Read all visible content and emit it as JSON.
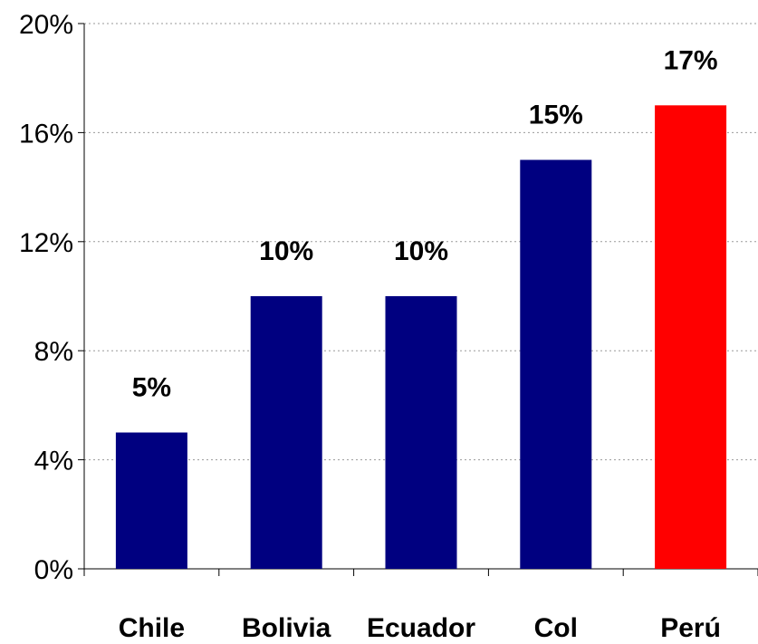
{
  "chart_data": {
    "type": "bar",
    "categories": [
      "Chile",
      "Bolivia",
      "Ecuador",
      "Col",
      "Perú"
    ],
    "values": [
      5,
      10,
      10,
      15,
      17
    ],
    "data_labels": [
      "5%",
      "10%",
      "10%",
      "15%",
      "17%"
    ],
    "bar_colors": [
      "#000080",
      "#000080",
      "#000080",
      "#000080",
      "#ff0000"
    ],
    "ylim": [
      0,
      20
    ],
    "yticks": [
      0,
      4,
      8,
      12,
      16,
      20
    ],
    "ytick_labels": [
      "0%",
      "4%",
      "8%",
      "12%",
      "16%",
      "20%"
    ],
    "title": "",
    "xlabel": "",
    "ylabel": "",
    "grid": "horizontal dotted",
    "legend": "none"
  }
}
